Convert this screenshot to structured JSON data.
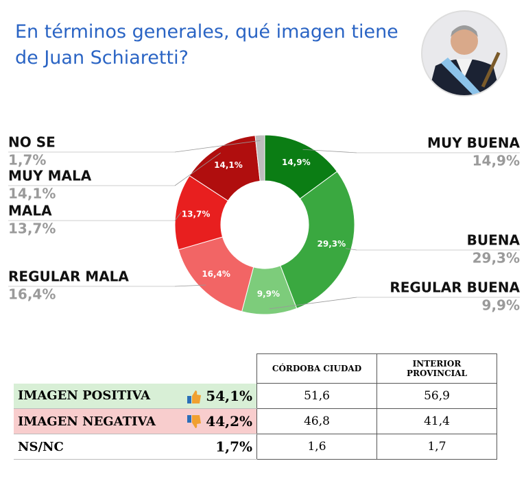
{
  "chart_data": {
    "type": "pie",
    "title": "En términos generales, qué imagen tiene de Juan Schiaretti?",
    "categories": [
      "MUY BUENA",
      "BUENA",
      "REGULAR BUENA",
      "REGULAR MALA",
      "MALA",
      "MUY MALA",
      "NO SE"
    ],
    "values": [
      14.9,
      29.3,
      9.9,
      16.4,
      13.7,
      14.1,
      1.7
    ],
    "value_labels": [
      "14,9%",
      "29,3%",
      "9,9%",
      "16,4%",
      "13,7%",
      "14,1%",
      "1,7%"
    ],
    "colors": [
      "#0b7d14",
      "#3aa840",
      "#7dcc7b",
      "#f26565",
      "#e81f1f",
      "#b00e0e",
      "#bdbdbd"
    ]
  },
  "table": {
    "columns": [
      "CÓRDOBA CIUDAD",
      "INTERIOR PROVINCIAL"
    ],
    "rows": [
      {
        "label": "IMAGEN POSITIVA",
        "total": "54,1%",
        "values": [
          "51,6",
          "56,9"
        ]
      },
      {
        "label": "IMAGEN NEGATIVA",
        "total": "44,2%",
        "values": [
          "46,8",
          "41,4"
        ]
      },
      {
        "label": "NS/NC",
        "total": "1,7%",
        "values": [
          "1,6",
          "1,7"
        ]
      }
    ]
  }
}
